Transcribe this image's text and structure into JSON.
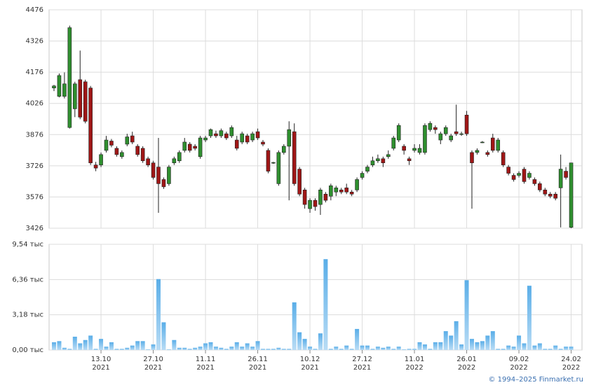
{
  "chart_data": [
    {
      "type": "candlestick",
      "open": [
        4100,
        4060,
        4060,
        3910,
        4000,
        4140,
        4130,
        4100,
        3730,
        3730,
        3800,
        3845,
        3810,
        3770,
        3830,
        3870,
        3820,
        3810,
        3760,
        3740,
        3720,
        3660,
        3640,
        3740,
        3750,
        3800,
        3830,
        3820,
        3770,
        3850,
        3870,
        3880,
        3870,
        3880,
        3870,
        3850,
        3840,
        3870,
        3850,
        3890,
        3840,
        3800,
        3740,
        3640,
        3790,
        3820,
        3890,
        3710,
        3610,
        3520,
        3560,
        3540,
        3590,
        3580,
        3600,
        3610,
        3620,
        3600,
        3610,
        3670,
        3700,
        3730,
        3750,
        3760,
        3770,
        3810,
        3850,
        3820,
        3760,
        3800,
        3790,
        3790,
        3900,
        3910,
        3850,
        3880,
        3850,
        3890,
        3880,
        3970,
        3790,
        3790,
        3840,
        3790,
        3860,
        3800,
        3790,
        3720,
        3680,
        3680,
        3710,
        3670,
        3660,
        3640,
        3610,
        3590,
        3590,
        3620,
        3700,
        3430
      ],
      "high": [
        4115,
        4170,
        4175,
        4400,
        4130,
        4280,
        4140,
        4110,
        3745,
        3790,
        3870,
        3855,
        3820,
        3800,
        3880,
        3890,
        3830,
        3820,
        3770,
        3750,
        3860,
        3670,
        3730,
        3770,
        3800,
        3860,
        3840,
        3830,
        3870,
        3870,
        3905,
        3895,
        3905,
        3890,
        3920,
        3870,
        3890,
        3880,
        3890,
        3905,
        3850,
        3810,
        3745,
        3800,
        3830,
        3940,
        3930,
        3720,
        3620,
        3570,
        3570,
        3620,
        3600,
        3640,
        3630,
        3620,
        3640,
        3610,
        3670,
        3700,
        3730,
        3770,
        3780,
        3770,
        3800,
        3870,
        3930,
        3830,
        3770,
        3830,
        3830,
        3930,
        3940,
        3920,
        3890,
        3920,
        3880,
        4020,
        3890,
        3990,
        3800,
        3810,
        3845,
        3800,
        3880,
        3860,
        3800,
        3730,
        3690,
        3700,
        3720,
        3700,
        3670,
        3650,
        3620,
        3600,
        3600,
        3780,
        3720,
        3740
      ],
      "low": [
        4085,
        4055,
        4050,
        3905,
        3960,
        3950,
        3930,
        3730,
        3700,
        3720,
        3790,
        3815,
        3770,
        3760,
        3820,
        3830,
        3770,
        3740,
        3720,
        3660,
        3500,
        3615,
        3630,
        3730,
        3740,
        3790,
        3790,
        3800,
        3760,
        3840,
        3860,
        3860,
        3860,
        3850,
        3860,
        3800,
        3830,
        3830,
        3840,
        3850,
        3820,
        3690,
        3735,
        3630,
        3780,
        3560,
        3630,
        3580,
        3520,
        3500,
        3510,
        3490,
        3550,
        3560,
        3580,
        3590,
        3590,
        3580,
        3600,
        3660,
        3690,
        3720,
        3740,
        3720,
        3760,
        3800,
        3840,
        3780,
        3730,
        3790,
        3780,
        3780,
        3890,
        3880,
        3830,
        3870,
        3840,
        3870,
        3870,
        3870,
        3520,
        3780,
        3835,
        3770,
        3790,
        3790,
        3720,
        3680,
        3650,
        3670,
        3640,
        3660,
        3630,
        3600,
        3580,
        3570,
        3560,
        3430,
        3660,
        3426
      ],
      "close": [
        4110,
        4160,
        4120,
        4390,
        4120,
        3960,
        3940,
        3740,
        3715,
        3780,
        3850,
        3825,
        3780,
        3790,
        3865,
        3840,
        3780,
        3750,
        3730,
        3670,
        3640,
        3625,
        3720,
        3760,
        3790,
        3840,
        3800,
        3810,
        3860,
        3860,
        3900,
        3870,
        3895,
        3860,
        3910,
        3810,
        3880,
        3840,
        3880,
        3860,
        3830,
        3700,
        3742,
        3790,
        3820,
        3900,
        3640,
        3590,
        3540,
        3560,
        3530,
        3610,
        3560,
        3630,
        3620,
        3600,
        3600,
        3590,
        3660,
        3690,
        3720,
        3750,
        3760,
        3740,
        3780,
        3860,
        3920,
        3800,
        3750,
        3810,
        3810,
        3920,
        3930,
        3900,
        3880,
        3910,
        3870,
        3880,
        3880,
        3880,
        3740,
        3800,
        3840,
        3780,
        3800,
        3850,
        3730,
        3690,
        3660,
        3690,
        3650,
        3690,
        3640,
        3610,
        3590,
        3580,
        3570,
        3710,
        3670,
        3740
      ],
      "up_color": "#2f8f2f",
      "down_color": "#a01616",
      "ylim": [
        3426,
        4476
      ],
      "yticks": [
        3426,
        3576,
        3726,
        3876,
        4026,
        4176,
        4326,
        4476
      ],
      "grid": true
    },
    {
      "type": "bar",
      "values": [
        0.7,
        0.8,
        0.2,
        0.1,
        1.2,
        0.6,
        0.9,
        1.3,
        0.1,
        1.0,
        0.3,
        0.7,
        0.1,
        0.1,
        0.2,
        0.4,
        0.8,
        0.8,
        0.05,
        0.5,
        6.4,
        2.5,
        0.05,
        0.9,
        0.2,
        0.2,
        0.1,
        0.2,
        0.3,
        0.6,
        0.7,
        0.3,
        0.2,
        0.1,
        0.3,
        0.7,
        0.3,
        0.6,
        0.3,
        0.8,
        0.1,
        0.1,
        0.1,
        0.2,
        0.1,
        0.1,
        4.3,
        1.6,
        1.0,
        0.3,
        0.1,
        1.5,
        8.2,
        0.1,
        0.3,
        0.1,
        0.4,
        0.1,
        1.9,
        0.4,
        0.4,
        0.1,
        0.3,
        0.2,
        0.3,
        0.1,
        0.3,
        0.05,
        0.1,
        0.1,
        0.7,
        0.5,
        0.1,
        0.7,
        0.7,
        1.7,
        1.3,
        2.6,
        0.5,
        6.3,
        1.0,
        0.7,
        0.8,
        1.3,
        1.7,
        0.1,
        0.1,
        0.4,
        0.3,
        1.3,
        0.6,
        5.8,
        0.4,
        0.6,
        0.1,
        0.1,
        0.4,
        0.1,
        0.3,
        0.3
      ],
      "color": "#7dbdec",
      "ylim": [
        0,
        9.54
      ],
      "yticks": [
        {
          "value": 0,
          "label": "0,00 тыс"
        },
        {
          "value": 3.18,
          "label": "3,18 тыс"
        },
        {
          "value": 6.36,
          "label": "6,36 тыс"
        },
        {
          "value": 9.54,
          "label": "9,54 тыс"
        }
      ],
      "xticks": [
        {
          "value": 9,
          "label": [
            "13.10",
            "2021"
          ]
        },
        {
          "value": 19,
          "label": [
            "27.10",
            "2021"
          ]
        },
        {
          "value": 29,
          "label": [
            "11.11",
            "2021"
          ]
        },
        {
          "value": 39,
          "label": [
            "26.11",
            "2021"
          ]
        },
        {
          "value": 49,
          "label": [
            "10.12",
            "2021"
          ]
        },
        {
          "value": 59,
          "label": [
            "27.12",
            "2021"
          ]
        },
        {
          "value": 69,
          "label": [
            "11.01",
            "2022"
          ]
        },
        {
          "value": 79,
          "label": [
            "26.01",
            "2022"
          ]
        },
        {
          "value": 89,
          "label": [
            "09.02",
            "2022"
          ]
        },
        {
          "value": 99,
          "label": [
            "24.02",
            "2022"
          ]
        }
      ],
      "grid": true
    }
  ],
  "footer": "© 1994–2025 Finmarket.ru"
}
